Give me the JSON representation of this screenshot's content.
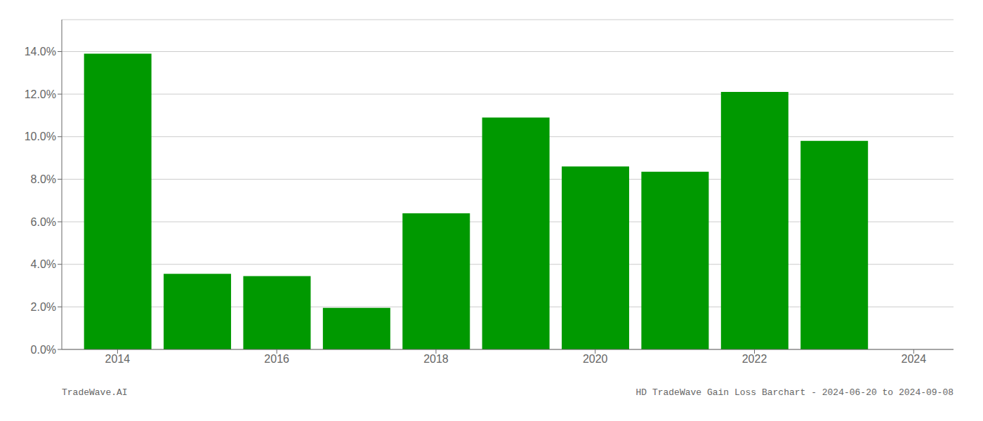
{
  "chart_data": {
    "type": "bar",
    "x": [
      2014,
      2015,
      2016,
      2017,
      2018,
      2019,
      2020,
      2021,
      2022,
      2023
    ],
    "values": [
      0.139,
      0.0355,
      0.0345,
      0.0195,
      0.064,
      0.109,
      0.086,
      0.0835,
      0.121,
      0.098
    ],
    "color": "#009900",
    "xlim": [
      2013.3,
      2024.5
    ],
    "xticks": [
      2014,
      2016,
      2018,
      2020,
      2022,
      2024
    ],
    "ylim": [
      0.0,
      0.155
    ],
    "yticks": [
      {
        "value": 0.0,
        "label": "0.0%"
      },
      {
        "value": 0.02,
        "label": "2.0%"
      },
      {
        "value": 0.04,
        "label": "4.0%"
      },
      {
        "value": 0.06,
        "label": "6.0%"
      },
      {
        "value": 0.08,
        "label": "8.0%"
      },
      {
        "value": 0.1,
        "label": "10.0%"
      },
      {
        "value": 0.12,
        "label": "12.0%"
      },
      {
        "value": 0.14,
        "label": "14.0%"
      }
    ],
    "grid": true,
    "annotations": [
      "TradeWave.AI",
      "HD TradeWave Gain Loss Barchart - 2024-06-20 to 2024-09-08"
    ]
  }
}
